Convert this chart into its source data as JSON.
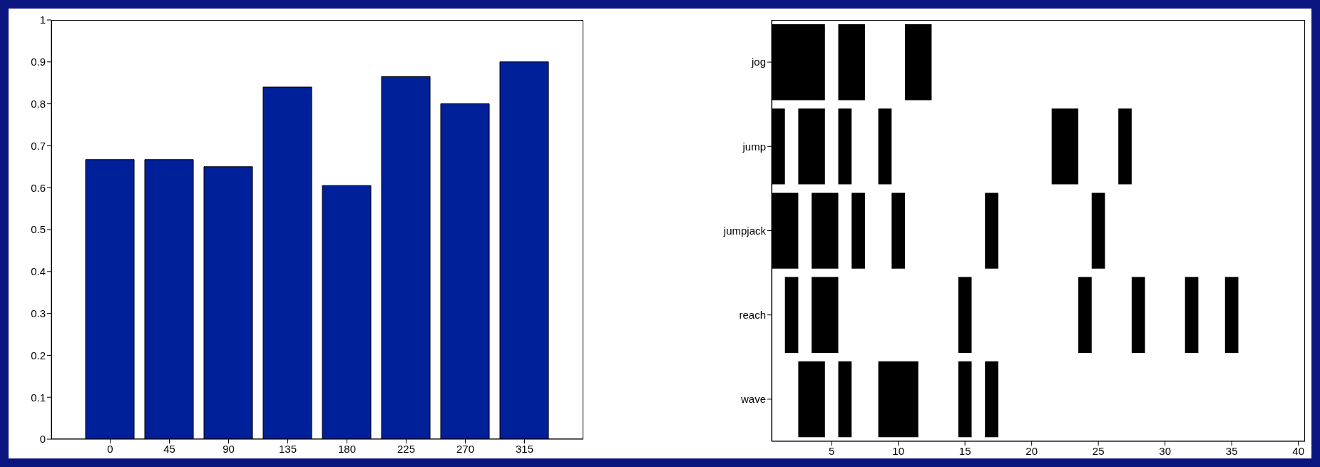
{
  "chart_data": [
    {
      "type": "bar",
      "categories": [
        "0",
        "45",
        "90",
        "135",
        "180",
        "225",
        "270",
        "315"
      ],
      "values": [
        0.667,
        0.667,
        0.65,
        0.84,
        0.605,
        0.865,
        0.8,
        0.9
      ],
      "color": "#00209a",
      "ylim": [
        0,
        1
      ],
      "yticks": [
        0,
        0.1,
        0.2,
        0.3,
        0.4,
        0.5,
        0.6,
        0.7,
        0.8,
        0.9,
        1
      ]
    },
    {
      "type": "bar",
      "orientation": "horizontal",
      "categories": [
        "jog",
        "jump",
        "jumpjack",
        "reach",
        "wave"
      ],
      "xlim": [
        0.5,
        40.5
      ],
      "xticks": [
        5,
        10,
        15,
        20,
        25,
        30,
        35,
        40
      ],
      "series": [
        {
          "color": "#000000",
          "base": [
            0.5,
            0.5,
            0.5,
            1.5,
            2.5
          ],
          "values": [
            4,
            1,
            2,
            1,
            2
          ]
        },
        {
          "color": "#000000",
          "base": [
            5.5,
            2.5,
            3.5,
            3.5,
            5.5
          ],
          "values": [
            2,
            2,
            2,
            2,
            1
          ]
        },
        {
          "color": "#000000",
          "base": [
            10.5,
            5.5,
            6.5,
            14.5,
            8.5
          ],
          "values": [
            2,
            1,
            1,
            1,
            3
          ]
        },
        {
          "color": "#000000",
          "base": [
            null,
            8.5,
            9.5,
            23.5,
            14.5
          ],
          "values": [
            null,
            1,
            1,
            1,
            1
          ]
        },
        {
          "color": "#000000",
          "base": [
            null,
            21.5,
            16.5,
            27.5,
            16.5
          ],
          "values": [
            null,
            2,
            1,
            1,
            1
          ]
        },
        {
          "color": "#000000",
          "base": [
            null,
            26.5,
            24.5,
            31.5,
            null
          ],
          "values": [
            null,
            1,
            1,
            1,
            null
          ]
        },
        {
          "color": "#000000",
          "base": [
            null,
            null,
            null,
            34.5,
            null
          ],
          "values": [
            null,
            null,
            null,
            1,
            null
          ]
        }
      ]
    }
  ]
}
